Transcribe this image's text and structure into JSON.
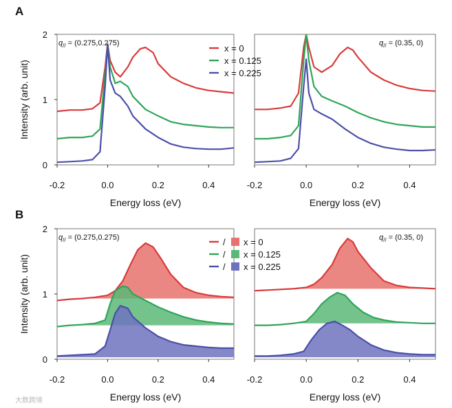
{
  "figure": {
    "watermark": "大数跨境",
    "colors": {
      "x0": "#d93a3a",
      "x0125": "#2ea559",
      "x0225": "#4a4fa8",
      "fill_x0": "#e8726d",
      "fill_x0125": "#5cb878",
      "fill_x0225": "#6f73bf"
    }
  },
  "chart_data": [
    {
      "id": "A-left",
      "panel": "A",
      "type": "line",
      "panel_letter": "A",
      "annotation": "q// = (0.275,0.275)",
      "xlabel": "Energy loss (eV)",
      "ylabel": "Intensity (arb. unit)",
      "xlim": [
        -0.2,
        0.5
      ],
      "ylim": [
        0,
        2
      ],
      "xticks": [
        "-0.2",
        "0.0",
        "0.2",
        "0.4"
      ],
      "yticks": [
        "0",
        "1",
        "2"
      ],
      "legend": {
        "position": "top-right",
        "entries": [
          "x = 0",
          "x = 0.125",
          "x = 0.225"
        ]
      },
      "series": [
        {
          "name": "x = 0",
          "color": "#d93a3a",
          "x": [
            -0.2,
            -0.15,
            -0.1,
            -0.06,
            -0.03,
            -0.01,
            0.0,
            0.01,
            0.03,
            0.05,
            0.08,
            0.1,
            0.13,
            0.15,
            0.18,
            0.2,
            0.25,
            0.3,
            0.35,
            0.4,
            0.45,
            0.5
          ],
          "y": [
            0.82,
            0.84,
            0.84,
            0.86,
            0.95,
            1.5,
            1.85,
            1.6,
            1.42,
            1.35,
            1.5,
            1.65,
            1.78,
            1.8,
            1.72,
            1.55,
            1.35,
            1.25,
            1.18,
            1.14,
            1.12,
            1.1
          ]
        },
        {
          "name": "x = 0.125",
          "color": "#2ea559",
          "x": [
            -0.2,
            -0.15,
            -0.1,
            -0.06,
            -0.03,
            -0.01,
            0.0,
            0.01,
            0.03,
            0.05,
            0.08,
            0.1,
            0.15,
            0.2,
            0.25,
            0.3,
            0.35,
            0.4,
            0.45,
            0.5
          ],
          "y": [
            0.4,
            0.42,
            0.42,
            0.44,
            0.55,
            1.4,
            1.85,
            1.5,
            1.25,
            1.28,
            1.2,
            1.05,
            0.85,
            0.75,
            0.66,
            0.62,
            0.6,
            0.58,
            0.57,
            0.57
          ]
        },
        {
          "name": "x = 0.225",
          "color": "#4a4fa8",
          "x": [
            -0.2,
            -0.15,
            -0.1,
            -0.06,
            -0.03,
            -0.01,
            0.0,
            0.01,
            0.03,
            0.05,
            0.08,
            0.1,
            0.15,
            0.2,
            0.25,
            0.3,
            0.35,
            0.4,
            0.45,
            0.5
          ],
          "y": [
            0.04,
            0.05,
            0.06,
            0.08,
            0.2,
            1.2,
            1.85,
            1.3,
            1.1,
            1.05,
            0.9,
            0.75,
            0.55,
            0.42,
            0.32,
            0.27,
            0.25,
            0.24,
            0.24,
            0.26
          ]
        }
      ]
    },
    {
      "id": "A-right",
      "panel": "A",
      "type": "line",
      "annotation": "q// = (0.35, 0)",
      "xlabel": "Energy loss (eV)",
      "xlim": [
        -0.2,
        0.5
      ],
      "ylim": [
        0,
        2
      ],
      "xticks": [
        "-0.2",
        "0.0",
        "0.2",
        "0.4"
      ],
      "series": [
        {
          "name": "x = 0",
          "color": "#d93a3a",
          "x": [
            -0.2,
            -0.15,
            -0.1,
            -0.06,
            -0.03,
            -0.01,
            0.0,
            0.01,
            0.03,
            0.06,
            0.1,
            0.13,
            0.16,
            0.18,
            0.2,
            0.25,
            0.3,
            0.35,
            0.4,
            0.45,
            0.5
          ],
          "y": [
            0.85,
            0.85,
            0.87,
            0.9,
            1.1,
            1.8,
            2.0,
            1.8,
            1.5,
            1.42,
            1.52,
            1.7,
            1.8,
            1.76,
            1.65,
            1.42,
            1.3,
            1.22,
            1.17,
            1.14,
            1.13
          ]
        },
        {
          "name": "x = 0.125",
          "color": "#2ea559",
          "x": [
            -0.2,
            -0.15,
            -0.1,
            -0.06,
            -0.03,
            -0.01,
            0.0,
            0.01,
            0.03,
            0.06,
            0.1,
            0.15,
            0.2,
            0.25,
            0.3,
            0.35,
            0.4,
            0.45,
            0.5
          ],
          "y": [
            0.4,
            0.4,
            0.42,
            0.45,
            0.6,
            1.6,
            2.0,
            1.6,
            1.2,
            1.05,
            0.98,
            0.9,
            0.8,
            0.72,
            0.66,
            0.62,
            0.6,
            0.58,
            0.58
          ]
        },
        {
          "name": "x = 0.225",
          "color": "#4a4fa8",
          "x": [
            -0.2,
            -0.15,
            -0.1,
            -0.06,
            -0.03,
            -0.01,
            0.0,
            0.01,
            0.03,
            0.06,
            0.1,
            0.15,
            0.2,
            0.25,
            0.3,
            0.35,
            0.4,
            0.45,
            0.5
          ],
          "y": [
            0.04,
            0.05,
            0.06,
            0.1,
            0.25,
            1.2,
            1.62,
            1.1,
            0.85,
            0.78,
            0.7,
            0.55,
            0.42,
            0.33,
            0.27,
            0.24,
            0.22,
            0.22,
            0.23
          ]
        }
      ]
    },
    {
      "id": "B-left",
      "panel": "B",
      "type": "area",
      "panel_letter": "B",
      "annotation": "q// = (0.275,0.275)",
      "xlabel": "Energy loss (eV)",
      "ylabel": "Intensity (arb. unit)",
      "xlim": [
        -0.2,
        0.5
      ],
      "ylim": [
        0,
        2
      ],
      "xticks": [
        "-0.2",
        "0.0",
        "0.2",
        "0.4"
      ],
      "yticks": [
        "0",
        "1",
        "2"
      ],
      "legend": {
        "position": "top-right",
        "separator": "/",
        "entries": [
          "x = 0",
          "x = 0.125",
          "x = 0.225"
        ]
      },
      "series": [
        {
          "name": "x = 0",
          "color": "#d93a3a",
          "fill": "#e8726d",
          "baseline": 0.93,
          "x": [
            -0.2,
            -0.15,
            -0.1,
            -0.05,
            0.0,
            0.03,
            0.06,
            0.09,
            0.12,
            0.15,
            0.18,
            0.21,
            0.25,
            0.3,
            0.35,
            0.4,
            0.45,
            0.5
          ],
          "y": [
            0.9,
            0.92,
            0.93,
            0.95,
            0.98,
            1.05,
            1.2,
            1.45,
            1.68,
            1.78,
            1.72,
            1.55,
            1.3,
            1.1,
            1.02,
            0.98,
            0.96,
            0.95
          ]
        },
        {
          "name": "x = 0.125",
          "color": "#2ea559",
          "fill": "#5cb878",
          "baseline": 0.52,
          "x": [
            -0.2,
            -0.15,
            -0.1,
            -0.05,
            -0.01,
            0.01,
            0.03,
            0.06,
            0.08,
            0.1,
            0.15,
            0.2,
            0.25,
            0.3,
            0.35,
            0.4,
            0.45,
            0.5
          ],
          "y": [
            0.5,
            0.52,
            0.53,
            0.55,
            0.6,
            0.85,
            1.05,
            1.12,
            1.1,
            1.0,
            0.9,
            0.8,
            0.72,
            0.65,
            0.6,
            0.57,
            0.55,
            0.54
          ]
        },
        {
          "name": "x = 0.225",
          "color": "#4a4fa8",
          "fill": "#6f73bf",
          "baseline": 0.03,
          "x": [
            -0.2,
            -0.15,
            -0.1,
            -0.05,
            -0.01,
            0.01,
            0.03,
            0.05,
            0.08,
            0.1,
            0.15,
            0.2,
            0.25,
            0.3,
            0.35,
            0.4,
            0.45,
            0.5
          ],
          "y": [
            0.05,
            0.06,
            0.07,
            0.08,
            0.2,
            0.45,
            0.7,
            0.82,
            0.78,
            0.65,
            0.48,
            0.35,
            0.27,
            0.22,
            0.2,
            0.18,
            0.17,
            0.17
          ]
        }
      ]
    },
    {
      "id": "B-right",
      "panel": "B",
      "type": "area",
      "annotation": "q// = (0.35, 0)",
      "xlabel": "Energy loss (eV)",
      "xlim": [
        -0.2,
        0.5
      ],
      "ylim": [
        0,
        2
      ],
      "xticks": [
        "-0.2",
        "0.0",
        "0.2",
        "0.4"
      ],
      "series": [
        {
          "name": "x = 0",
          "color": "#d93a3a",
          "fill": "#e8726d",
          "baseline": 1.08,
          "x": [
            -0.2,
            -0.15,
            -0.1,
            -0.05,
            0.0,
            0.03,
            0.06,
            0.1,
            0.13,
            0.16,
            0.18,
            0.2,
            0.25,
            0.3,
            0.35,
            0.4,
            0.45,
            0.5
          ],
          "y": [
            1.05,
            1.06,
            1.07,
            1.08,
            1.1,
            1.15,
            1.25,
            1.45,
            1.7,
            1.85,
            1.8,
            1.65,
            1.4,
            1.2,
            1.13,
            1.1,
            1.09,
            1.08
          ]
        },
        {
          "name": "x = 0.125",
          "color": "#2ea559",
          "fill": "#5cb878",
          "baseline": 0.55,
          "x": [
            -0.2,
            -0.15,
            -0.1,
            -0.05,
            0.0,
            0.03,
            0.06,
            0.09,
            0.12,
            0.15,
            0.18,
            0.22,
            0.26,
            0.3,
            0.35,
            0.4,
            0.45,
            0.5
          ],
          "y": [
            0.52,
            0.52,
            0.53,
            0.55,
            0.58,
            0.7,
            0.85,
            0.95,
            1.02,
            0.98,
            0.85,
            0.72,
            0.64,
            0.6,
            0.57,
            0.56,
            0.55,
            0.55
          ]
        },
        {
          "name": "x = 0.225",
          "color": "#4a4fa8",
          "fill": "#6f73bf",
          "baseline": 0.03,
          "x": [
            -0.2,
            -0.15,
            -0.1,
            -0.05,
            -0.01,
            0.02,
            0.05,
            0.08,
            0.11,
            0.14,
            0.17,
            0.2,
            0.25,
            0.3,
            0.35,
            0.4,
            0.45,
            0.5
          ],
          "y": [
            0.05,
            0.05,
            0.06,
            0.08,
            0.12,
            0.3,
            0.45,
            0.55,
            0.58,
            0.52,
            0.45,
            0.35,
            0.22,
            0.14,
            0.1,
            0.08,
            0.07,
            0.07
          ]
        }
      ]
    }
  ]
}
